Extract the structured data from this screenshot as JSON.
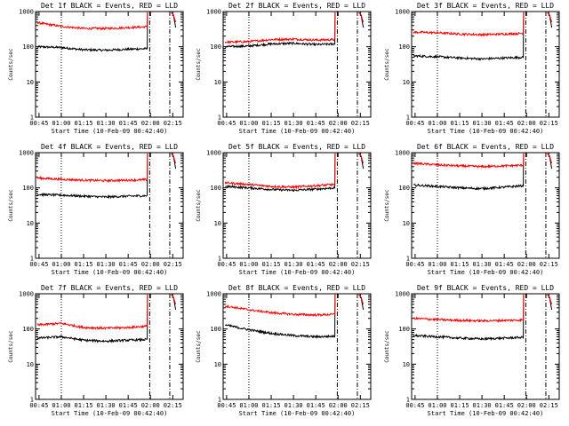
{
  "figure": {
    "background": "#ffffff",
    "event_color": "#000000",
    "lld_color": "#ff0000"
  },
  "chart_data": [
    {
      "type": "line",
      "title": "Det 1f BLACK = Events, RED = LLD",
      "xlabel": "Start Time (10-Feb-09 00:42:40)",
      "ylabel": "Counts/sec",
      "x_ticks": [
        "00:45",
        "01:00",
        "01:15",
        "01:30",
        "01:45",
        "02:00",
        "02:15"
      ],
      "y_ticks": [
        "1",
        "10",
        "100",
        "1000"
      ],
      "yscale": "log",
      "ylim": [
        1,
        1000
      ],
      "xlim": [
        "00:42:40",
        "02:22:00"
      ],
      "series": [
        {
          "name": "Events",
          "color": "#000000",
          "x": [
            "00:44",
            "01:00",
            "01:15",
            "01:30",
            "01:45",
            "01:58"
          ],
          "values": [
            100,
            95,
            82,
            80,
            85,
            88
          ]
        },
        {
          "name": "LLD",
          "color": "#ff0000",
          "x": [
            "00:44",
            "01:00",
            "01:15",
            "01:30",
            "01:45",
            "01:58"
          ],
          "values": [
            480,
            380,
            330,
            330,
            350,
            370
          ]
        }
      ]
    },
    {
      "type": "line",
      "title": "Det 2f BLACK = Events, RED = LLD",
      "xlabel": "Start Time (10-Feb-09 00:42:40)",
      "ylabel": "Counts/sec",
      "x_ticks": [
        "00:45",
        "01:00",
        "01:15",
        "01:30",
        "01:45",
        "02:00",
        "02:15"
      ],
      "y_ticks": [
        "1",
        "10",
        "100",
        "1000"
      ],
      "yscale": "log",
      "ylim": [
        1,
        1000
      ],
      "xlim": [
        "00:42:40",
        "02:22:00"
      ],
      "series": [
        {
          "name": "Events",
          "color": "#000000",
          "x": [
            "00:44",
            "01:00",
            "01:15",
            "01:30",
            "01:45",
            "01:58"
          ],
          "values": [
            100,
            105,
            120,
            125,
            115,
            120
          ]
        },
        {
          "name": "LLD",
          "color": "#ff0000",
          "x": [
            "00:44",
            "01:00",
            "01:15",
            "01:30",
            "01:45",
            "01:58"
          ],
          "values": [
            135,
            140,
            160,
            165,
            155,
            160
          ]
        }
      ]
    },
    {
      "type": "line",
      "title": "Det 3f BLACK = Events, RED = LLD",
      "xlabel": "Start Time (10-Feb-09 00:42:40)",
      "ylabel": "Counts/sec",
      "x_ticks": [
        "00:45",
        "01:00",
        "01:15",
        "01:30",
        "01:45",
        "02:00",
        "02:15"
      ],
      "y_ticks": [
        "1",
        "10",
        "100",
        "1000"
      ],
      "yscale": "log",
      "ylim": [
        1,
        1000
      ],
      "xlim": [
        "00:42:40",
        "02:22:00"
      ],
      "series": [
        {
          "name": "Events",
          "color": "#000000",
          "x": [
            "00:44",
            "01:00",
            "01:15",
            "01:30",
            "01:45",
            "01:58"
          ],
          "values": [
            55,
            52,
            48,
            45,
            48,
            50
          ]
        },
        {
          "name": "LLD",
          "color": "#ff0000",
          "x": [
            "00:44",
            "01:00",
            "01:15",
            "01:30",
            "01:45",
            "01:58"
          ],
          "values": [
            260,
            250,
            230,
            220,
            230,
            240
          ]
        }
      ]
    },
    {
      "type": "line",
      "title": "Det 4f BLACK = Events, RED = LLD",
      "xlabel": "Start Time (10-Feb-09 00:42:40)",
      "ylabel": "Counts/sec",
      "x_ticks": [
        "00:45",
        "01:00",
        "01:15",
        "01:30",
        "01:45",
        "02:00",
        "02:15"
      ],
      "y_ticks": [
        "1",
        "10",
        "100",
        "1000"
      ],
      "yscale": "log",
      "ylim": [
        1,
        1000
      ],
      "xlim": [
        "00:42:40",
        "02:22:00"
      ],
      "series": [
        {
          "name": "Events",
          "color": "#000000",
          "x": [
            "00:44",
            "01:00",
            "01:15",
            "01:30",
            "01:45",
            "01:58"
          ],
          "values": [
            65,
            62,
            58,
            55,
            58,
            60
          ]
        },
        {
          "name": "LLD",
          "color": "#ff0000",
          "x": [
            "00:44",
            "01:00",
            "01:15",
            "01:30",
            "01:45",
            "01:58"
          ],
          "values": [
            190,
            175,
            165,
            160,
            165,
            170
          ]
        }
      ]
    },
    {
      "type": "line",
      "title": "Det 5f BLACK = Events, RED = LLD",
      "xlabel": "Start Time (10-Feb-09 00:42:40)",
      "ylabel": "Counts/sec",
      "x_ticks": [
        "00:45",
        "01:00",
        "01:15",
        "01:30",
        "01:45",
        "02:00",
        "02:15"
      ],
      "y_ticks": [
        "1",
        "10",
        "100",
        "1000"
      ],
      "yscale": "log",
      "ylim": [
        1,
        1000
      ],
      "xlim": [
        "00:42:40",
        "02:22:00"
      ],
      "series": [
        {
          "name": "Events",
          "color": "#000000",
          "x": [
            "00:44",
            "01:00",
            "01:15",
            "01:30",
            "01:45",
            "01:58"
          ],
          "values": [
            110,
            100,
            90,
            85,
            92,
            100
          ]
        },
        {
          "name": "LLD",
          "color": "#ff0000",
          "x": [
            "00:44",
            "01:00",
            "01:15",
            "01:30",
            "01:45",
            "01:58"
          ],
          "values": [
            140,
            125,
            110,
            105,
            115,
            125
          ]
        }
      ]
    },
    {
      "type": "line",
      "title": "Det 6f BLACK = Events, RED = LLD",
      "xlabel": "Start Time (10-Feb-09 00:42:40)",
      "ylabel": "Counts/sec",
      "x_ticks": [
        "00:45",
        "01:00",
        "01:15",
        "01:30",
        "01:45",
        "02:00",
        "02:15"
      ],
      "y_ticks": [
        "1",
        "10",
        "100",
        "1000"
      ],
      "yscale": "log",
      "ylim": [
        1,
        1000
      ],
      "xlim": [
        "00:42:40",
        "02:22:00"
      ],
      "series": [
        {
          "name": "Events",
          "color": "#000000",
          "x": [
            "00:44",
            "01:00",
            "01:15",
            "01:30",
            "01:45",
            "01:58"
          ],
          "values": [
            120,
            110,
            100,
            95,
            105,
            115
          ]
        },
        {
          "name": "LLD",
          "color": "#ff0000",
          "x": [
            "00:44",
            "01:00",
            "01:15",
            "01:30",
            "01:45",
            "01:58"
          ],
          "values": [
            500,
            450,
            420,
            400,
            420,
            440
          ]
        }
      ]
    },
    {
      "type": "line",
      "title": "Det 7f BLACK = Events, RED = LLD",
      "xlabel": "Start Time (10-Feb-09 00:42:40)",
      "ylabel": "Counts/sec",
      "x_ticks": [
        "00:45",
        "01:00",
        "01:15",
        "01:30",
        "01:45",
        "02:00",
        "02:15"
      ],
      "y_ticks": [
        "1",
        "10",
        "100",
        "1000"
      ],
      "yscale": "log",
      "ylim": [
        1,
        1000
      ],
      "xlim": [
        "00:42:40",
        "02:22:00"
      ],
      "series": [
        {
          "name": "Events",
          "color": "#000000",
          "x": [
            "00:44",
            "01:00",
            "01:15",
            "01:30",
            "01:45",
            "01:58"
          ],
          "values": [
            55,
            60,
            48,
            45,
            48,
            50
          ]
        },
        {
          "name": "LLD",
          "color": "#ff0000",
          "x": [
            "00:44",
            "01:00",
            "01:15",
            "01:30",
            "01:45",
            "01:58"
          ],
          "values": [
            130,
            145,
            110,
            105,
            110,
            120
          ]
        }
      ]
    },
    {
      "type": "line",
      "title": "Det 8f BLACK = Events, RED = LLD",
      "xlabel": "Start Time (10-Feb-09 00:42:40)",
      "ylabel": "Counts/sec",
      "x_ticks": [
        "00:45",
        "01:00",
        "01:15",
        "01:30",
        "01:45",
        "02:00",
        "02:15"
      ],
      "y_ticks": [
        "1",
        "10",
        "100",
        "1000"
      ],
      "yscale": "log",
      "ylim": [
        1,
        1000
      ],
      "xlim": [
        "00:42:40",
        "02:22:00"
      ],
      "series": [
        {
          "name": "Events",
          "color": "#000000",
          "x": [
            "00:44",
            "01:00",
            "01:15",
            "01:30",
            "01:45",
            "01:58"
          ],
          "values": [
            130,
            95,
            75,
            65,
            60,
            62
          ]
        },
        {
          "name": "LLD",
          "color": "#ff0000",
          "x": [
            "00:44",
            "01:00",
            "01:15",
            "01:30",
            "01:45",
            "01:58"
          ],
          "values": [
            450,
            350,
            290,
            260,
            250,
            260
          ]
        }
      ]
    },
    {
      "type": "line",
      "title": "Det 9f BLACK = Events, RED = LLD",
      "xlabel": "Start Time (10-Feb-09 00:42:40)",
      "ylabel": "Counts/sec",
      "x_ticks": [
        "00:45",
        "01:00",
        "01:15",
        "01:30",
        "01:45",
        "02:00",
        "02:15"
      ],
      "y_ticks": [
        "1",
        "10",
        "100",
        "1000"
      ],
      "yscale": "log",
      "ylim": [
        1,
        1000
      ],
      "xlim": [
        "00:42:40",
        "02:22:00"
      ],
      "series": [
        {
          "name": "Events",
          "color": "#000000",
          "x": [
            "00:44",
            "01:00",
            "01:15",
            "01:30",
            "01:45",
            "01:58"
          ],
          "values": [
            65,
            60,
            55,
            52,
            55,
            58
          ]
        },
        {
          "name": "LLD",
          "color": "#ff0000",
          "x": [
            "00:44",
            "01:00",
            "01:15",
            "01:30",
            "01:45",
            "01:58"
          ],
          "values": [
            200,
            185,
            175,
            170,
            175,
            180
          ]
        }
      ]
    }
  ]
}
